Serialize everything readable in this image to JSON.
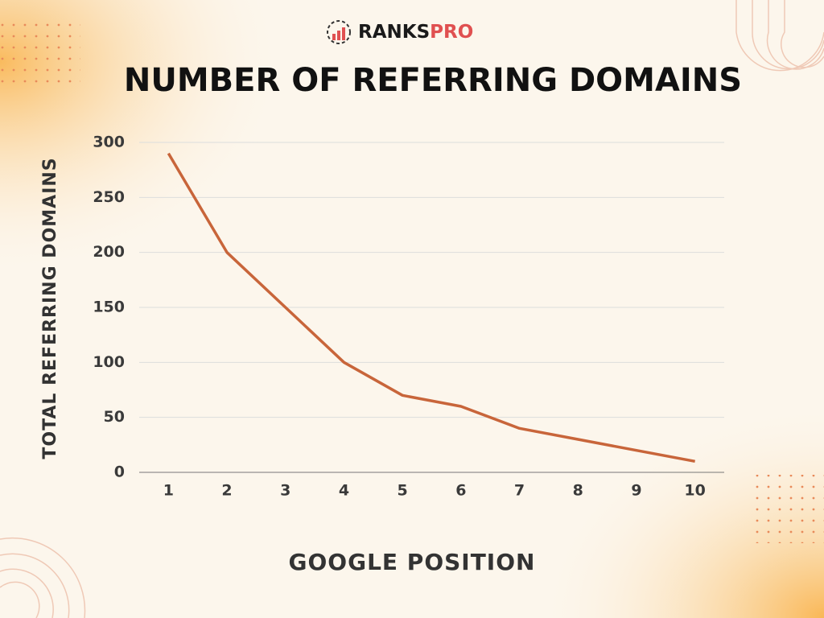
{
  "brand": {
    "first": "RANKS",
    "second": "PRO"
  },
  "chart_data": {
    "type": "line",
    "title": "NUMBER OF REFERRING DOMAINS",
    "x_label": "GOOGLE POSITION",
    "y_label": "TOTAL REFERRING DOMAINS",
    "x": [
      1,
      2,
      3,
      4,
      5,
      6,
      7,
      8,
      9,
      10
    ],
    "series": [
      {
        "color": "#c8653a",
        "values": [
          290,
          200,
          150,
          100,
          70,
          60,
          40,
          30,
          20,
          10
        ]
      }
    ],
    "xlim": [
      0.5,
      10.5
    ],
    "xticks": [
      1,
      2,
      3,
      4,
      5,
      6,
      7,
      8,
      9,
      10
    ],
    "ylim": [
      0,
      300
    ],
    "yticks": [
      0,
      50,
      100,
      150,
      200,
      250,
      300
    ],
    "grid": true
  }
}
